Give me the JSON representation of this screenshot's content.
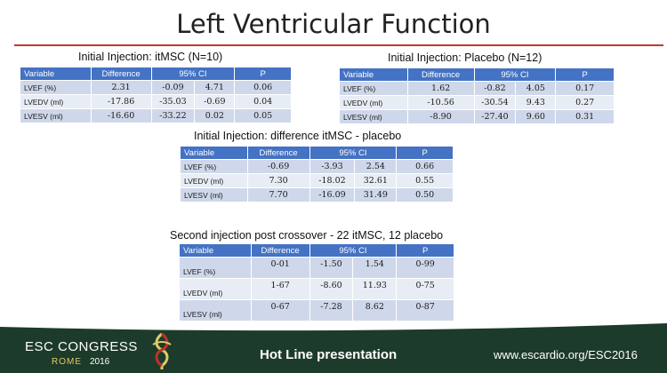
{
  "slide_title": "Left Ventricular Function",
  "tables": [
    {
      "caption": "Initial Injection: itMSC (N=10)",
      "headers": [
        "Variable",
        "Difference",
        "95% CI",
        "P"
      ],
      "rows": [
        {
          "variable": "LVEF (%)",
          "difference": "2.31",
          "ci_low": "-0.09",
          "ci_high": "4.71",
          "p": "0.06"
        },
        {
          "variable": "LVEDV (ml)",
          "difference": "-17.86",
          "ci_low": "-35.03",
          "ci_high": "-0.69",
          "p": "0.04"
        },
        {
          "variable": "LVESV (ml)",
          "difference": "-16.60",
          "ci_low": "-33.22",
          "ci_high": "0.02",
          "p": "0.05"
        }
      ]
    },
    {
      "caption": "Initial Injection: Placebo (N=12)",
      "headers": [
        "Variable",
        "Difference",
        "95% CI",
        "P"
      ],
      "rows": [
        {
          "variable": "LVEF (%)",
          "difference": "1.62",
          "ci_low": "-0.82",
          "ci_high": "4.05",
          "p": "0.17"
        },
        {
          "variable": "LVEDV (ml)",
          "difference": "-10.56",
          "ci_low": "-30.54",
          "ci_high": "9.43",
          "p": "0.27"
        },
        {
          "variable": "LVESV (ml)",
          "difference": "-8.90",
          "ci_low": "-27.40",
          "ci_high": "9.60",
          "p": "0.31"
        }
      ]
    },
    {
      "caption": "Initial Injection: difference itMSC - placebo",
      "headers": [
        "Variable",
        "Difference",
        "95% CI",
        "P"
      ],
      "rows": [
        {
          "variable": "LVEF (%)",
          "difference": "-0.69",
          "ci_low": "-3.93",
          "ci_high": "2.54",
          "p": "0.66"
        },
        {
          "variable": "LVEDV (ml)",
          "difference": "7.30",
          "ci_low": "-18.02",
          "ci_high": "32.61",
          "p": "0.55"
        },
        {
          "variable": "LVESV (ml)",
          "difference": "7.70",
          "ci_low": "-16.09",
          "ci_high": "31.49",
          "p": "0.50"
        }
      ]
    },
    {
      "caption": "Second injection post crossover - 22 itMSC, 12 placebo",
      "headers": [
        "Variable",
        "Difference",
        "95% CI",
        "P"
      ],
      "rows": [
        {
          "variable": "LVEF (%)",
          "difference": "0-01",
          "ci_low": "-1.50",
          "ci_high": "1.54",
          "p": "0-99"
        },
        {
          "variable": "LVEDV (ml)",
          "difference": "1-67",
          "ci_low": "-8.60",
          "ci_high": "11.93",
          "p": "0-75"
        },
        {
          "variable": "LVESV (ml)",
          "difference": "0-67",
          "ci_low": "-7.28",
          "ci_high": "8.62",
          "p": "0-87"
        }
      ]
    }
  ],
  "footer": {
    "congress_name": "ESC CONGRESS",
    "city": "ROME",
    "year": "2016",
    "presentation": "Hot Line presentation",
    "website": "www.escardio.org/ESC2016",
    "colors": {
      "band": "#1d3b2a",
      "city": "#e0c96a",
      "logo_red": "#b8342b"
    }
  },
  "colors": {
    "header": "#4472c4",
    "row_odd": "#cfd8ea",
    "row_even": "#e8edf5",
    "rule": "#c0392b"
  }
}
